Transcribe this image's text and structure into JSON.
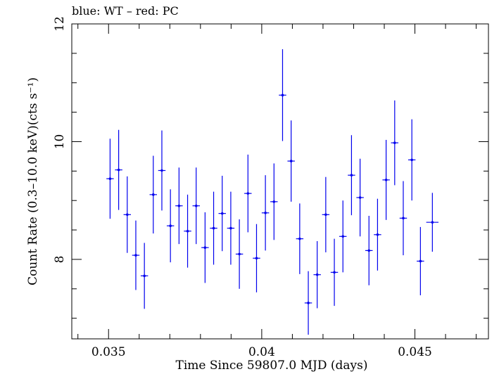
{
  "chart_data": {
    "type": "scatter",
    "title": "blue: WT – red: PC",
    "xlabel": "Time Since 59807.0 MJD (days)",
    "ylabel": "Count Rate (0.3–10.0 keV)(cts s⁻¹)",
    "xlim": [
      0.0338,
      0.0474
    ],
    "ylim": [
      6.65,
      12.0
    ],
    "xticks": [
      0.035,
      0.04,
      0.045
    ],
    "xtick_labels": [
      "0.035",
      "0.04",
      "0.045"
    ],
    "yticks": [
      8,
      10,
      12
    ],
    "ytick_labels": [
      "8",
      "10",
      "12"
    ],
    "grid": false,
    "series": [
      {
        "color": "#0000ee",
        "x_halfwidth": 0.00012,
        "points": [
          {
            "x": 0.03505,
            "y": 9.37,
            "err": 0.68
          },
          {
            "x": 0.03533,
            "y": 9.52,
            "err": 0.68
          },
          {
            "x": 0.03561,
            "y": 8.76,
            "err": 0.65
          },
          {
            "x": 0.03589,
            "y": 8.07,
            "err": 0.59
          },
          {
            "x": 0.03617,
            "y": 7.72,
            "err": 0.56
          },
          {
            "x": 0.03646,
            "y": 9.1,
            "err": 0.66
          },
          {
            "x": 0.03674,
            "y": 9.51,
            "err": 0.68
          },
          {
            "x": 0.03702,
            "y": 8.57,
            "err": 0.62
          },
          {
            "x": 0.0373,
            "y": 8.91,
            "err": 0.65
          },
          {
            "x": 0.03758,
            "y": 8.48,
            "err": 0.62
          },
          {
            "x": 0.03786,
            "y": 8.91,
            "err": 0.65
          },
          {
            "x": 0.03815,
            "y": 8.2,
            "err": 0.6
          },
          {
            "x": 0.03843,
            "y": 8.53,
            "err": 0.62
          },
          {
            "x": 0.03871,
            "y": 8.78,
            "err": 0.64
          },
          {
            "x": 0.03899,
            "y": 8.53,
            "err": 0.62
          },
          {
            "x": 0.03927,
            "y": 8.09,
            "err": 0.59
          },
          {
            "x": 0.03955,
            "y": 9.12,
            "err": 0.66
          },
          {
            "x": 0.03983,
            "y": 8.02,
            "err": 0.58
          },
          {
            "x": 0.04012,
            "y": 8.79,
            "err": 0.64
          },
          {
            "x": 0.0404,
            "y": 8.98,
            "err": 0.65
          },
          {
            "x": 0.04068,
            "y": 10.79,
            "err": 0.78
          },
          {
            "x": 0.04096,
            "y": 9.67,
            "err": 0.69
          },
          {
            "x": 0.04124,
            "y": 8.35,
            "err": 0.6
          },
          {
            "x": 0.04152,
            "y": 7.26,
            "err": 0.54
          },
          {
            "x": 0.04181,
            "y": 7.74,
            "err": 0.57
          },
          {
            "x": 0.04209,
            "y": 8.76,
            "err": 0.64
          },
          {
            "x": 0.04237,
            "y": 7.78,
            "err": 0.57
          },
          {
            "x": 0.04265,
            "y": 8.39,
            "err": 0.61
          },
          {
            "x": 0.04293,
            "y": 9.43,
            "err": 0.68
          },
          {
            "x": 0.04321,
            "y": 9.05,
            "err": 0.66
          },
          {
            "x": 0.0435,
            "y": 8.15,
            "err": 0.59
          },
          {
            "x": 0.04378,
            "y": 8.42,
            "err": 0.61
          },
          {
            "x": 0.04406,
            "y": 9.35,
            "err": 0.68
          },
          {
            "x": 0.04434,
            "y": 9.98,
            "err": 0.72
          },
          {
            "x": 0.04462,
            "y": 8.7,
            "err": 0.63
          },
          {
            "x": 0.0449,
            "y": 9.69,
            "err": 0.69
          },
          {
            "x": 0.04518,
            "y": 7.97,
            "err": 0.58
          },
          {
            "x": 0.04557,
            "y": 8.63,
            "err": 0.5,
            "x_halfwidth": 0.0002
          }
        ]
      }
    ]
  }
}
